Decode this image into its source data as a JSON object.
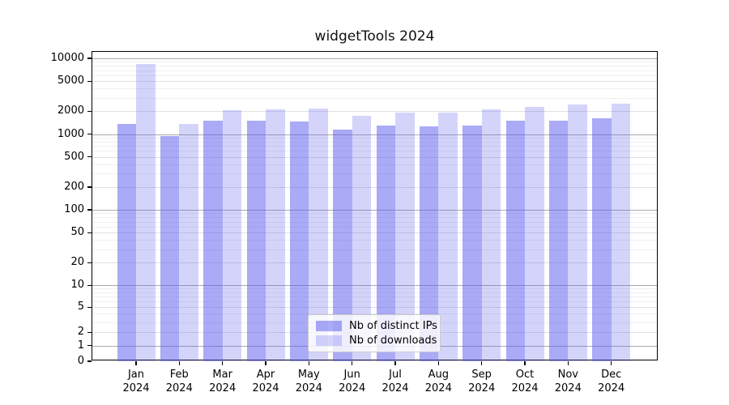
{
  "chart_data": {
    "type": "bar",
    "title": "widgetTools 2024",
    "xlabel": "",
    "ylabel": "",
    "yscale": "asinh-log (shows 0, then 1,2,5,10... up to 10000)",
    "ylim": [
      0,
      12000
    ],
    "grid": "horizontal, major lines at powers of 10, lighter lines at 2x and 5x, faint minor lines",
    "legend_position": "lower center inside plot",
    "year_label": "2024",
    "categories": [
      "Jan",
      "Feb",
      "Mar",
      "Apr",
      "May",
      "Jun",
      "Jul",
      "Aug",
      "Sep",
      "Oct",
      "Nov",
      "Dec"
    ],
    "y_ticks": [
      10000,
      5000,
      2000,
      1000,
      500,
      200,
      100,
      50,
      20,
      10,
      5,
      2,
      1,
      0
    ],
    "series": [
      {
        "name": "Nb of distinct IPs",
        "values": [
          1350,
          950,
          1500,
          1500,
          1450,
          1150,
          1300,
          1270,
          1300,
          1500,
          1500,
          1600
        ]
      },
      {
        "name": "Nb of downloads",
        "values": [
          8400,
          1350,
          2050,
          2100,
          2150,
          1750,
          1900,
          1900,
          2100,
          2300,
          2450,
          2500
        ]
      }
    ]
  },
  "colors": {
    "bar_base": "#5555ee",
    "bar_distinct_ips": "rgba(85,85,238,0.5)",
    "bar_downloads": "rgba(85,85,238,0.25)",
    "grid_major": "#ababab",
    "grid_sub": "#e0e0e0",
    "grid_minor": "#efefef",
    "axis": "#000000",
    "legend_border": "#cccccc"
  }
}
